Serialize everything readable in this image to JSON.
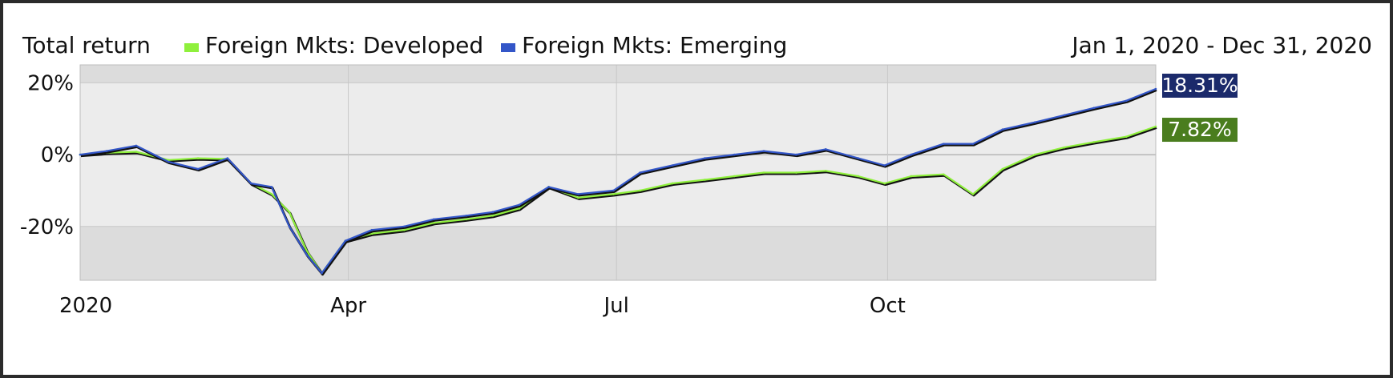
{
  "header": {
    "title": "Total return",
    "date_range": "Jan 1, 2020 - Dec 31, 2020"
  },
  "colors": {
    "developed": "#8ff03c",
    "emerging": "#3356c8",
    "developed_badge": "#4a7d1e",
    "emerging_badge": "#1b2a6b"
  },
  "chart_data": {
    "type": "line",
    "title": "Total return",
    "xlabel": "",
    "ylabel": "",
    "x_range": [
      "2020-01-01",
      "2020-12-31"
    ],
    "ylim": [
      -35,
      25
    ],
    "y_ticks": [
      20,
      0,
      -20
    ],
    "y_tick_labels": [
      "20%",
      "0%",
      "-20%"
    ],
    "x_ticks": [
      "2020-01-01",
      "2020-04-01",
      "2020-07-01",
      "2020-10-01"
    ],
    "x_tick_labels": [
      "2020",
      "Apr",
      "Jul",
      "Oct"
    ],
    "grid": true,
    "legend": "top-left",
    "series": [
      {
        "name": "Foreign Mkts: Developed",
        "end_label": "7.82%",
        "x": [
          "2020-01-01",
          "2020-01-10",
          "2020-01-20",
          "2020-01-31",
          "2020-02-10",
          "2020-02-20",
          "2020-02-28",
          "2020-03-06",
          "2020-03-12",
          "2020-03-18",
          "2020-03-23",
          "2020-03-31",
          "2020-04-09",
          "2020-04-20",
          "2020-04-30",
          "2020-05-11",
          "2020-05-20",
          "2020-05-29",
          "2020-06-08",
          "2020-06-18",
          "2020-06-30",
          "2020-07-09",
          "2020-07-20",
          "2020-07-31",
          "2020-08-10",
          "2020-08-20",
          "2020-08-31",
          "2020-09-10",
          "2020-09-21",
          "2020-09-30",
          "2020-10-09",
          "2020-10-20",
          "2020-10-30",
          "2020-11-09",
          "2020-11-20",
          "2020-11-30",
          "2020-12-10",
          "2020-12-21",
          "2020-12-31"
        ],
        "y": [
          0,
          0.5,
          0.8,
          -1.5,
          -1,
          -1.2,
          -8,
          -11,
          -16,
          -27,
          -33,
          -24,
          -22,
          -21,
          -19,
          -18,
          -17,
          -15,
          -9,
          -12,
          -11,
          -10,
          -8,
          -7,
          -6,
          -5,
          -5,
          -4.5,
          -6,
          -8,
          -6,
          -5.5,
          -11,
          -4,
          0,
          2,
          3.5,
          5,
          7.82
        ]
      },
      {
        "name": "Foreign Mkts: Emerging",
        "end_label": "18.31%",
        "x": [
          "2020-01-01",
          "2020-01-10",
          "2020-01-20",
          "2020-01-31",
          "2020-02-10",
          "2020-02-20",
          "2020-02-28",
          "2020-03-06",
          "2020-03-12",
          "2020-03-18",
          "2020-03-23",
          "2020-03-31",
          "2020-04-09",
          "2020-04-20",
          "2020-04-30",
          "2020-05-11",
          "2020-05-20",
          "2020-05-29",
          "2020-06-08",
          "2020-06-18",
          "2020-06-30",
          "2020-07-09",
          "2020-07-20",
          "2020-07-31",
          "2020-08-10",
          "2020-08-20",
          "2020-08-31",
          "2020-09-10",
          "2020-09-21",
          "2020-09-30",
          "2020-10-09",
          "2020-10-20",
          "2020-10-30",
          "2020-11-09",
          "2020-11-20",
          "2020-11-30",
          "2020-12-10",
          "2020-12-21",
          "2020-12-31"
        ],
        "y": [
          0,
          1,
          2.5,
          -2,
          -4,
          -1,
          -8,
          -9,
          -20,
          -28,
          -33,
          -24,
          -21,
          -20,
          -18,
          -17,
          -16,
          -14,
          -9,
          -11,
          -10,
          -5,
          -3,
          -1,
          0,
          1,
          0,
          1.5,
          -1,
          -3,
          0,
          3,
          3,
          7,
          9,
          11,
          13,
          15,
          18.31
        ]
      }
    ]
  }
}
